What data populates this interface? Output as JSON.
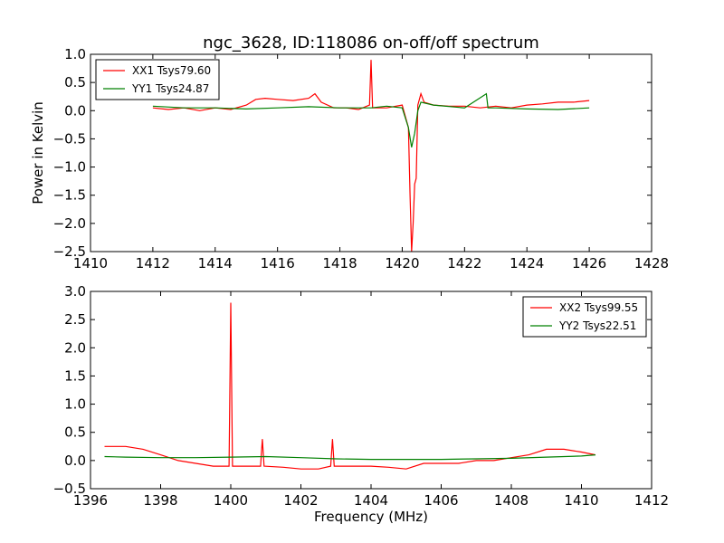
{
  "chart_data": [
    {
      "type": "line",
      "title": "ngc_3628, ID:118086 on-off/off spectrum",
      "xlabel": "",
      "ylabel": "Power in Kelvin",
      "xlim": [
        1410,
        1428
      ],
      "ylim": [
        -2.5,
        1.0
      ],
      "xticks": [
        "1410",
        "1412",
        "1414",
        "1416",
        "1418",
        "1420",
        "1422",
        "1424",
        "1426",
        "1428"
      ],
      "yticks": [
        "1.0",
        "0.5",
        "0.0",
        "−0.5",
        "−1.0",
        "−1.5",
        "−2.0",
        "−2.5"
      ],
      "legend_position": "upper-left",
      "series": [
        {
          "name": "XX1 Tsys79.60",
          "color": "#ff0000",
          "x": [
            1412.0,
            1412.5,
            1413.0,
            1413.5,
            1414.0,
            1414.5,
            1415.0,
            1415.3,
            1415.6,
            1416.0,
            1416.5,
            1417.0,
            1417.2,
            1417.4,
            1417.8,
            1418.2,
            1418.6,
            1418.95,
            1419.0,
            1419.05,
            1419.5,
            1420.0,
            1420.2,
            1420.25,
            1420.3,
            1420.35,
            1420.4,
            1420.45,
            1420.5,
            1420.6,
            1420.7,
            1421.0,
            1421.5,
            1422.0,
            1422.5,
            1423.0,
            1423.5,
            1424.0,
            1424.5,
            1425.0,
            1425.5,
            1426.0
          ],
          "y": [
            0.05,
            0.02,
            0.05,
            0.0,
            0.05,
            0.02,
            0.1,
            0.2,
            0.22,
            0.2,
            0.18,
            0.22,
            0.3,
            0.15,
            0.05,
            0.05,
            0.02,
            0.1,
            0.9,
            0.05,
            0.05,
            0.1,
            -0.3,
            -1.5,
            -2.5,
            -2.0,
            -1.3,
            -1.2,
            0.1,
            0.3,
            0.15,
            0.1,
            0.08,
            0.08,
            0.05,
            0.08,
            0.05,
            0.1,
            0.12,
            0.15,
            0.15,
            0.18
          ]
        },
        {
          "name": "YY1 Tsys24.87",
          "color": "#008000",
          "x": [
            1412.0,
            1413.0,
            1414.0,
            1415.0,
            1416.0,
            1417.0,
            1418.0,
            1419.0,
            1419.5,
            1420.0,
            1420.2,
            1420.3,
            1420.4,
            1420.5,
            1420.6,
            1421.0,
            1422.0,
            1422.7,
            1422.75,
            1422.8,
            1423.0,
            1424.0,
            1425.0,
            1426.0
          ],
          "y": [
            0.08,
            0.05,
            0.05,
            0.03,
            0.05,
            0.07,
            0.05,
            0.05,
            0.08,
            0.05,
            -0.3,
            -0.65,
            -0.4,
            0.0,
            0.15,
            0.1,
            0.05,
            0.3,
            0.05,
            0.05,
            0.05,
            0.03,
            0.02,
            0.05
          ]
        }
      ]
    },
    {
      "type": "line",
      "title": "",
      "xlabel": "Frequency (MHz)",
      "ylabel": "",
      "xlim": [
        1396,
        1412
      ],
      "ylim": [
        -0.5,
        3.0
      ],
      "xticks": [
        "1396",
        "1398",
        "1400",
        "1402",
        "1404",
        "1406",
        "1408",
        "1410",
        "1412"
      ],
      "yticks": [
        "3.0",
        "2.5",
        "2.0",
        "1.5",
        "1.0",
        "0.5",
        "0.0",
        "−0.5"
      ],
      "legend_position": "upper-right",
      "series": [
        {
          "name": "XX2 Tsys99.55",
          "color": "#ff0000",
          "x": [
            1396.4,
            1397.0,
            1397.5,
            1398.0,
            1398.5,
            1399.0,
            1399.5,
            1399.95,
            1400.0,
            1400.05,
            1400.5,
            1400.85,
            1400.9,
            1400.95,
            1401.5,
            1402.0,
            1402.5,
            1402.85,
            1402.9,
            1402.95,
            1403.5,
            1404.0,
            1404.5,
            1405.0,
            1405.5,
            1406.0,
            1406.5,
            1407.0,
            1407.5,
            1408.0,
            1408.5,
            1409.0,
            1409.5,
            1410.0,
            1410.4
          ],
          "y": [
            0.25,
            0.25,
            0.2,
            0.1,
            0.0,
            -0.05,
            -0.1,
            -0.1,
            2.8,
            -0.1,
            -0.1,
            -0.1,
            0.38,
            -0.1,
            -0.12,
            -0.15,
            -0.15,
            -0.1,
            0.38,
            -0.1,
            -0.1,
            -0.1,
            -0.12,
            -0.15,
            -0.05,
            -0.05,
            -0.05,
            0.0,
            0.0,
            0.05,
            0.1,
            0.2,
            0.2,
            0.15,
            0.1
          ]
        },
        {
          "name": "YY2 Tsys22.51",
          "color": "#008000",
          "x": [
            1396.4,
            1397.0,
            1398.0,
            1399.0,
            1400.0,
            1401.0,
            1402.0,
            1403.0,
            1404.0,
            1405.0,
            1406.0,
            1407.0,
            1408.0,
            1409.0,
            1410.0,
            1410.4
          ],
          "y": [
            0.07,
            0.06,
            0.05,
            0.05,
            0.06,
            0.07,
            0.05,
            0.03,
            0.02,
            0.02,
            0.02,
            0.03,
            0.04,
            0.06,
            0.08,
            0.1
          ]
        }
      ]
    }
  ]
}
